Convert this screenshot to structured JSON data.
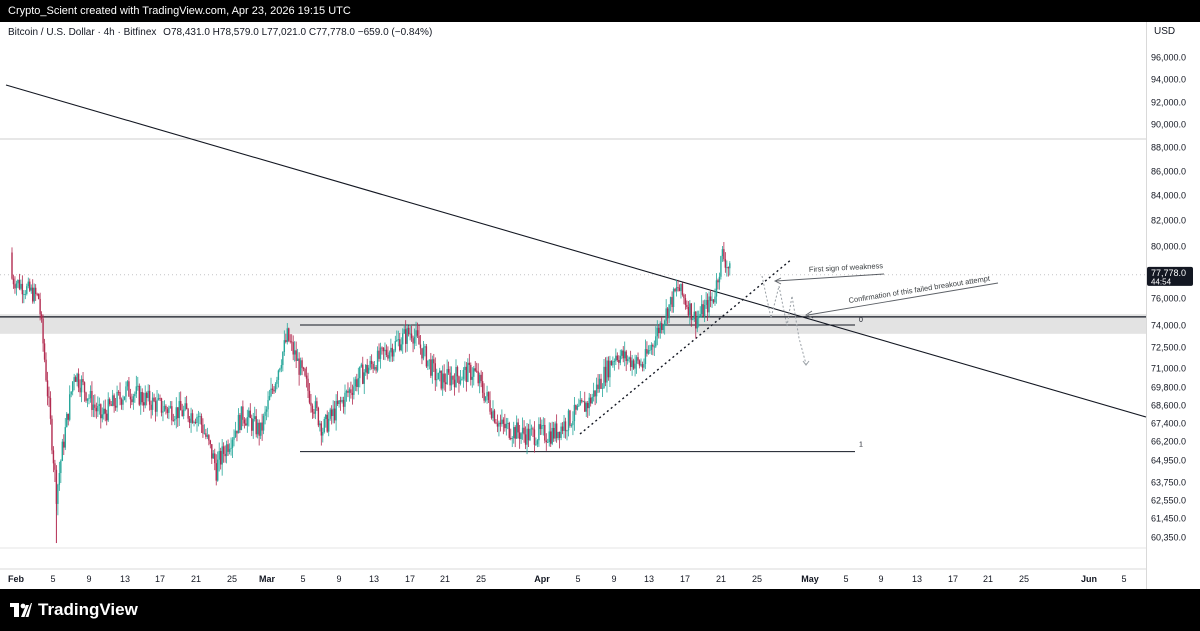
{
  "watermark": "Crypto_Scient created with TradingView.com, Apr 23, 2026 19:15 UTC",
  "symbol": {
    "name": "Bitcoin / U.S. Dollar · 4h · Bitfinex",
    "ohlc": "O78,431.0 H78,579.0 L77,021.0 C77,778.0 −659.0 (−0.84%)"
  },
  "currency": "USD",
  "last_price": {
    "value": "77,778.0",
    "countdown": "44:54",
    "color": "#131722"
  },
  "brand": "TradingView",
  "colors": {
    "up": "#26a69a",
    "down": "#b22b50",
    "line": "#131722"
  },
  "chart_data": {
    "type": "candlestick",
    "title": "",
    "interval": "4h",
    "price_ticks": [
      "96,000.0",
      "94,000.0",
      "92,000.0",
      "90,000.0",
      "88,000.0",
      "86,000.0",
      "84,000.0",
      "82,000.0",
      "80,000.0",
      "76,000.0",
      "74,000.0",
      "72,500.0",
      "71,000.0",
      "69,800.0",
      "68,600.0",
      "67,400.0",
      "66,200.0",
      "64,950.0",
      "63,750.0",
      "62,550.0",
      "61,450.0",
      "60,350.0"
    ],
    "date_ticks": [
      "Feb",
      "5",
      "9",
      "13",
      "17",
      "21",
      "25",
      "Mar",
      "5",
      "9",
      "13",
      "17",
      "21",
      "25",
      "Apr",
      "5",
      "9",
      "13",
      "17",
      "21",
      "25",
      "May",
      "5",
      "9",
      "13",
      "17",
      "21",
      "25",
      "Jun",
      "5"
    ],
    "daily_closes": [
      {
        "date": "2026-02-01",
        "close": 77500
      },
      {
        "date": "2026-02-04",
        "close": 76000
      },
      {
        "date": "2026-02-06",
        "close": 63000
      },
      {
        "date": "2026-02-08",
        "close": 70800
      },
      {
        "date": "2026-02-11",
        "close": 67800
      },
      {
        "date": "2026-02-14",
        "close": 69600
      },
      {
        "date": "2026-02-18",
        "close": 68400
      },
      {
        "date": "2026-02-22",
        "close": 67900
      },
      {
        "date": "2026-02-24",
        "close": 64500
      },
      {
        "date": "2026-02-27",
        "close": 68000
      },
      {
        "date": "2026-03-01",
        "close": 66800
      },
      {
        "date": "2026-03-04",
        "close": 73200
      },
      {
        "date": "2026-03-08",
        "close": 67000
      },
      {
        "date": "2026-03-12",
        "close": 70400
      },
      {
        "date": "2026-03-16",
        "close": 72600
      },
      {
        "date": "2026-03-18",
        "close": 73600
      },
      {
        "date": "2026-03-21",
        "close": 70200
      },
      {
        "date": "2026-03-25",
        "close": 70800
      },
      {
        "date": "2026-03-28",
        "close": 67200
      },
      {
        "date": "2026-03-31",
        "close": 66600
      },
      {
        "date": "2026-04-03",
        "close": 66700
      },
      {
        "date": "2026-04-07",
        "close": 68800
      },
      {
        "date": "2026-04-10",
        "close": 72000
      },
      {
        "date": "2026-04-13",
        "close": 71200
      },
      {
        "date": "2026-04-15",
        "close": 74000
      },
      {
        "date": "2026-04-17",
        "close": 76800
      },
      {
        "date": "2026-04-19",
        "close": 74400
      },
      {
        "date": "2026-04-21",
        "close": 76000
      },
      {
        "date": "2026-04-22",
        "close": 79400
      },
      {
        "date": "2026-04-23",
        "close": 77778
      }
    ],
    "levels": [
      {
        "label": "0",
        "price": 74000
      },
      {
        "label": "1",
        "price": 65500
      }
    ],
    "annotations": [
      "First sign of weakness",
      "Confirmation of this failed breakout attempt"
    ]
  }
}
